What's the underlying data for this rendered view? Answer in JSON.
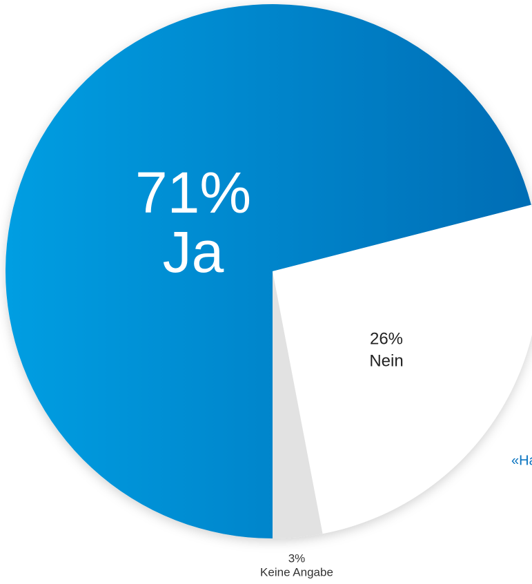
{
  "chart_data": {
    "type": "pie",
    "categories": [
      "Ja",
      "Nein",
      "Keine Angabe"
    ],
    "values": [
      71,
      26,
      3
    ],
    "value_labels": [
      "71%",
      "26%",
      "3%"
    ],
    "colors": [
      "#0088d0",
      "#ffffff",
      "#e2e2e2"
    ],
    "start": "bottom",
    "direction": "clockwise",
    "annotation": "«Ha"
  }
}
